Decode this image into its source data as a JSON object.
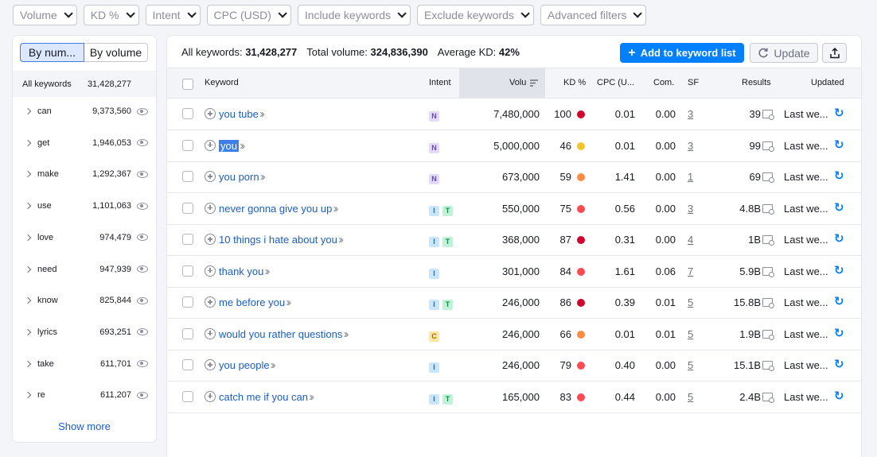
{
  "filters": [
    "Volume",
    "KD %",
    "Intent",
    "CPC (USD)",
    "Include keywords",
    "Exclude keywords",
    "Advanced filters"
  ],
  "sidebar": {
    "tab_by_number": "By num...",
    "tab_by_volume": "By volume",
    "all_label": "All keywords",
    "all_count": "31,428,277",
    "items": [
      {
        "word": "can",
        "count": "9,373,560"
      },
      {
        "word": "get",
        "count": "1,946,053"
      },
      {
        "word": "make",
        "count": "1,292,367"
      },
      {
        "word": "use",
        "count": "1,101,063"
      },
      {
        "word": "love",
        "count": "974,479"
      },
      {
        "word": "need",
        "count": "947,939"
      },
      {
        "word": "know",
        "count": "825,844"
      },
      {
        "word": "lyrics",
        "count": "693,251"
      },
      {
        "word": "take",
        "count": "611,701"
      },
      {
        "word": "re",
        "count": "611,207"
      }
    ],
    "show_more": "Show more"
  },
  "summary": {
    "all_label": "All keywords:",
    "all_value": "31,428,277",
    "vol_label": "Total volume:",
    "vol_value": "324,836,390",
    "kd_label": "Average KD:",
    "kd_value": "42%"
  },
  "buttons": {
    "add": "Add to keyword list",
    "update": "Update"
  },
  "columns": {
    "keyword": "Keyword",
    "intent": "Intent",
    "volume": "Volu",
    "kd": "KD %",
    "cpc": "CPC (U...",
    "com": "Com.",
    "sf": "SF",
    "results": "Results",
    "updated": "Updated"
  },
  "colors": {
    "red": "#e0103a",
    "orange": "#ff8c42",
    "yellow": "#f4b731",
    "lightred": "#ff4953"
  },
  "rows": [
    {
      "kw": "you tube",
      "intent": [
        "N"
      ],
      "volume": "7,480,000",
      "kd": "100",
      "kdcolor": "#d1002f",
      "cpc": "0.01",
      "com": "0.00",
      "sf": "3",
      "results": "39",
      "updated": "Last we..."
    },
    {
      "kw": "you",
      "intent": [
        "N"
      ],
      "volume": "5,000,000",
      "kd": "46",
      "kdcolor": "#f4c430",
      "cpc": "0.01",
      "com": "0.00",
      "sf": "3",
      "results": "99",
      "updated": "Last we...",
      "selected": true
    },
    {
      "kw": "you porn",
      "intent": [
        "N"
      ],
      "volume": "673,000",
      "kd": "59",
      "kdcolor": "#ff8c42",
      "cpc": "1.41",
      "com": "0.00",
      "sf": "1",
      "results": "69",
      "updated": "Last we..."
    },
    {
      "kw": "never gonna give you up",
      "intent": [
        "I",
        "T"
      ],
      "volume": "550,000",
      "kd": "75",
      "kdcolor": "#ff4953",
      "cpc": "0.56",
      "com": "0.00",
      "sf": "3",
      "results": "4.8B",
      "updated": "Last we..."
    },
    {
      "kw": "10 things i hate about you",
      "intent": [
        "I",
        "T"
      ],
      "volume": "368,000",
      "kd": "87",
      "kdcolor": "#d1002f",
      "cpc": "0.31",
      "com": "0.00",
      "sf": "4",
      "results": "1B",
      "updated": "Last we..."
    },
    {
      "kw": "thank you",
      "intent": [
        "I"
      ],
      "volume": "301,000",
      "kd": "84",
      "kdcolor": "#ff4953",
      "cpc": "1.61",
      "com": "0.06",
      "sf": "7",
      "results": "5.9B",
      "updated": "Last we..."
    },
    {
      "kw": "me before you",
      "intent": [
        "I",
        "T"
      ],
      "volume": "246,000",
      "kd": "86",
      "kdcolor": "#d1002f",
      "cpc": "0.39",
      "com": "0.01",
      "sf": "5",
      "results": "15.8B",
      "updated": "Last we..."
    },
    {
      "kw": "would you rather questions",
      "intent": [
        "C"
      ],
      "volume": "246,000",
      "kd": "66",
      "kdcolor": "#ff8c42",
      "cpc": "0.01",
      "com": "0.01",
      "sf": "5",
      "results": "1.9B",
      "updated": "Last we..."
    },
    {
      "kw": "you people",
      "intent": [
        "I"
      ],
      "volume": "246,000",
      "kd": "79",
      "kdcolor": "#ff4953",
      "cpc": "0.40",
      "com": "0.00",
      "sf": "5",
      "results": "15.1B",
      "updated": "Last we..."
    },
    {
      "kw": "catch me if you can",
      "intent": [
        "I",
        "T"
      ],
      "volume": "165,000",
      "kd": "83",
      "kdcolor": "#ff4953",
      "cpc": "0.44",
      "com": "0.00",
      "sf": "5",
      "results": "2.4B",
      "updated": "Last we..."
    }
  ]
}
